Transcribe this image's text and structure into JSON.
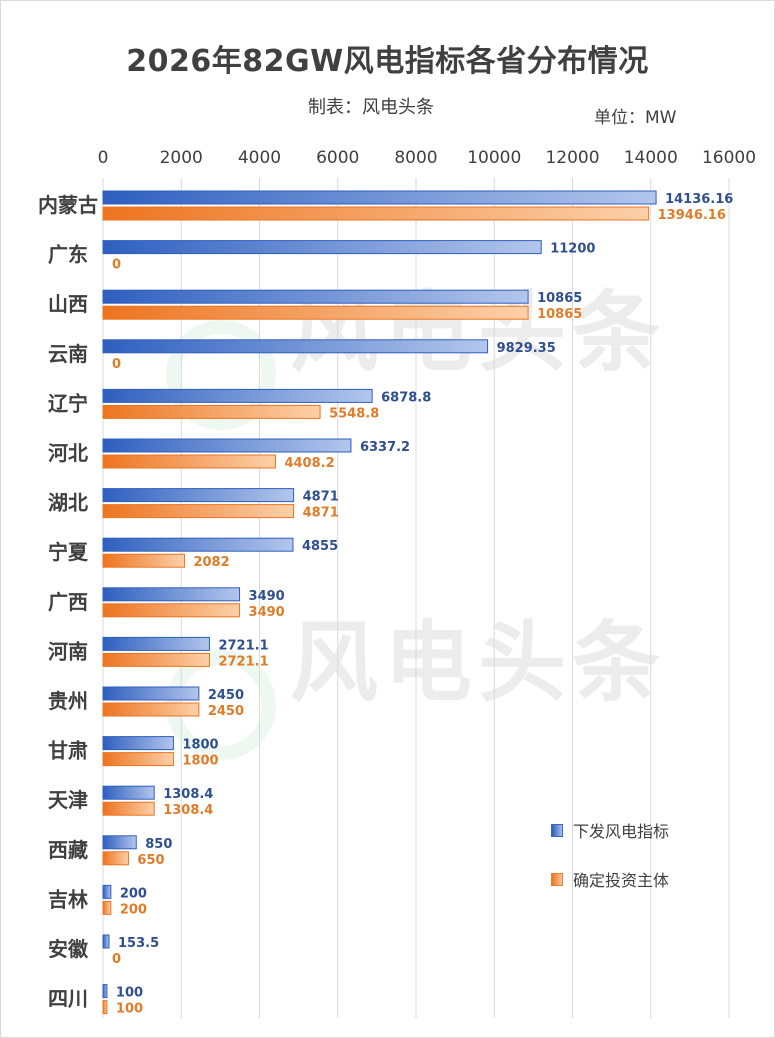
{
  "title": "2026年82GW风电指标各省分布情况",
  "maker": "制表：风电头条",
  "unit": "单位：MW",
  "watermark": "风电头条",
  "colors": {
    "series1_dark": "#2e5fbf",
    "series1_light": "#b3c6ec",
    "series1_label": "#2f4f8f",
    "series2_dark": "#ed7420",
    "series2_light": "#fcd0a8",
    "series2_label": "#e07b28",
    "grid": "#d9d9d9",
    "text": "#404040"
  },
  "chart_data": {
    "type": "bar",
    "orientation": "horizontal",
    "categories": [
      "内蒙古",
      "广东",
      "山西",
      "云南",
      "辽宁",
      "河北",
      "湖北",
      "宁夏",
      "广西",
      "河南",
      "贵州",
      "甘肃",
      "天津",
      "西藏",
      "吉林",
      "安徽",
      "四川"
    ],
    "series": [
      {
        "name": "下发风电指标",
        "values": [
          14136.16,
          11200,
          10865,
          9829.35,
          6878.8,
          6337.2,
          4871,
          4855,
          3490,
          2721.1,
          2450,
          1800,
          1308.4,
          850,
          200,
          153.5,
          100
        ],
        "labels": [
          "14136.16",
          "11200",
          "10865",
          "9829.35",
          "6878.8",
          "6337.2",
          "4871",
          "4855",
          "3490",
          "2721.1",
          "2450",
          "1800",
          "1308.4",
          "850",
          "200",
          "153.5",
          "100"
        ]
      },
      {
        "name": "确定投资主体",
        "values": [
          13946.16,
          0,
          10865,
          0,
          5548.8,
          4408.2,
          4871,
          2082,
          3490,
          2721.1,
          2450,
          1800,
          1308.4,
          650,
          200,
          0,
          100
        ],
        "labels": [
          "13946.16",
          "0",
          "10865",
          "0",
          "5548.8",
          "4408.2",
          "4871",
          "2082",
          "3490",
          "2721.1",
          "2450",
          "1800",
          "1308.4",
          "650",
          "200",
          "0",
          "100"
        ]
      }
    ],
    "xlim": [
      0,
      16000
    ],
    "xticks": [
      0,
      2000,
      4000,
      6000,
      8000,
      10000,
      12000,
      14000,
      16000
    ],
    "xtick_labels": [
      "0",
      "2000",
      "4000",
      "6000",
      "8000",
      "10000",
      "12000",
      "14000",
      "16000"
    ],
    "axis_position": "top",
    "grid": true,
    "legend_position": "bottom-right"
  }
}
